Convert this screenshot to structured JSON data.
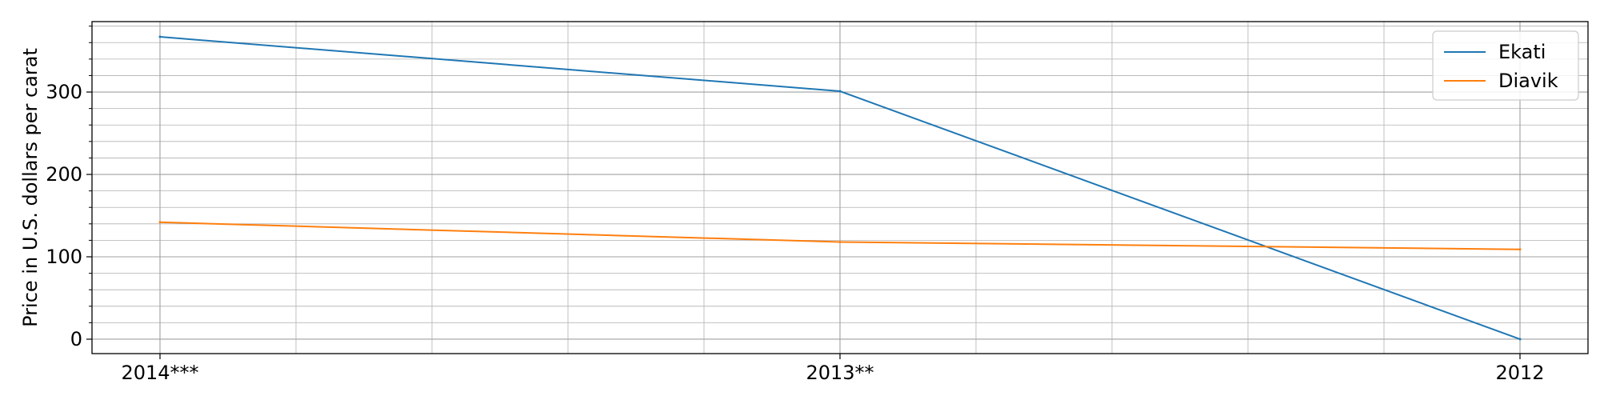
{
  "chart_data": {
    "type": "line",
    "categories": [
      "2014***",
      "2013**",
      "2012"
    ],
    "series": [
      {
        "name": "Ekati",
        "values": [
          367,
          301,
          0
        ],
        "color": "#1f77b4"
      },
      {
        "name": "Diavik",
        "values": [
          142,
          118,
          109
        ],
        "color": "#ff7f0e"
      }
    ],
    "title": "",
    "xlabel": "",
    "ylabel": "Price in U.S. dollars per carat",
    "ylim": [
      -17.5,
      385.5
    ],
    "yticks": [
      0,
      100,
      200,
      300
    ],
    "grid": true,
    "legend": "top-right"
  }
}
